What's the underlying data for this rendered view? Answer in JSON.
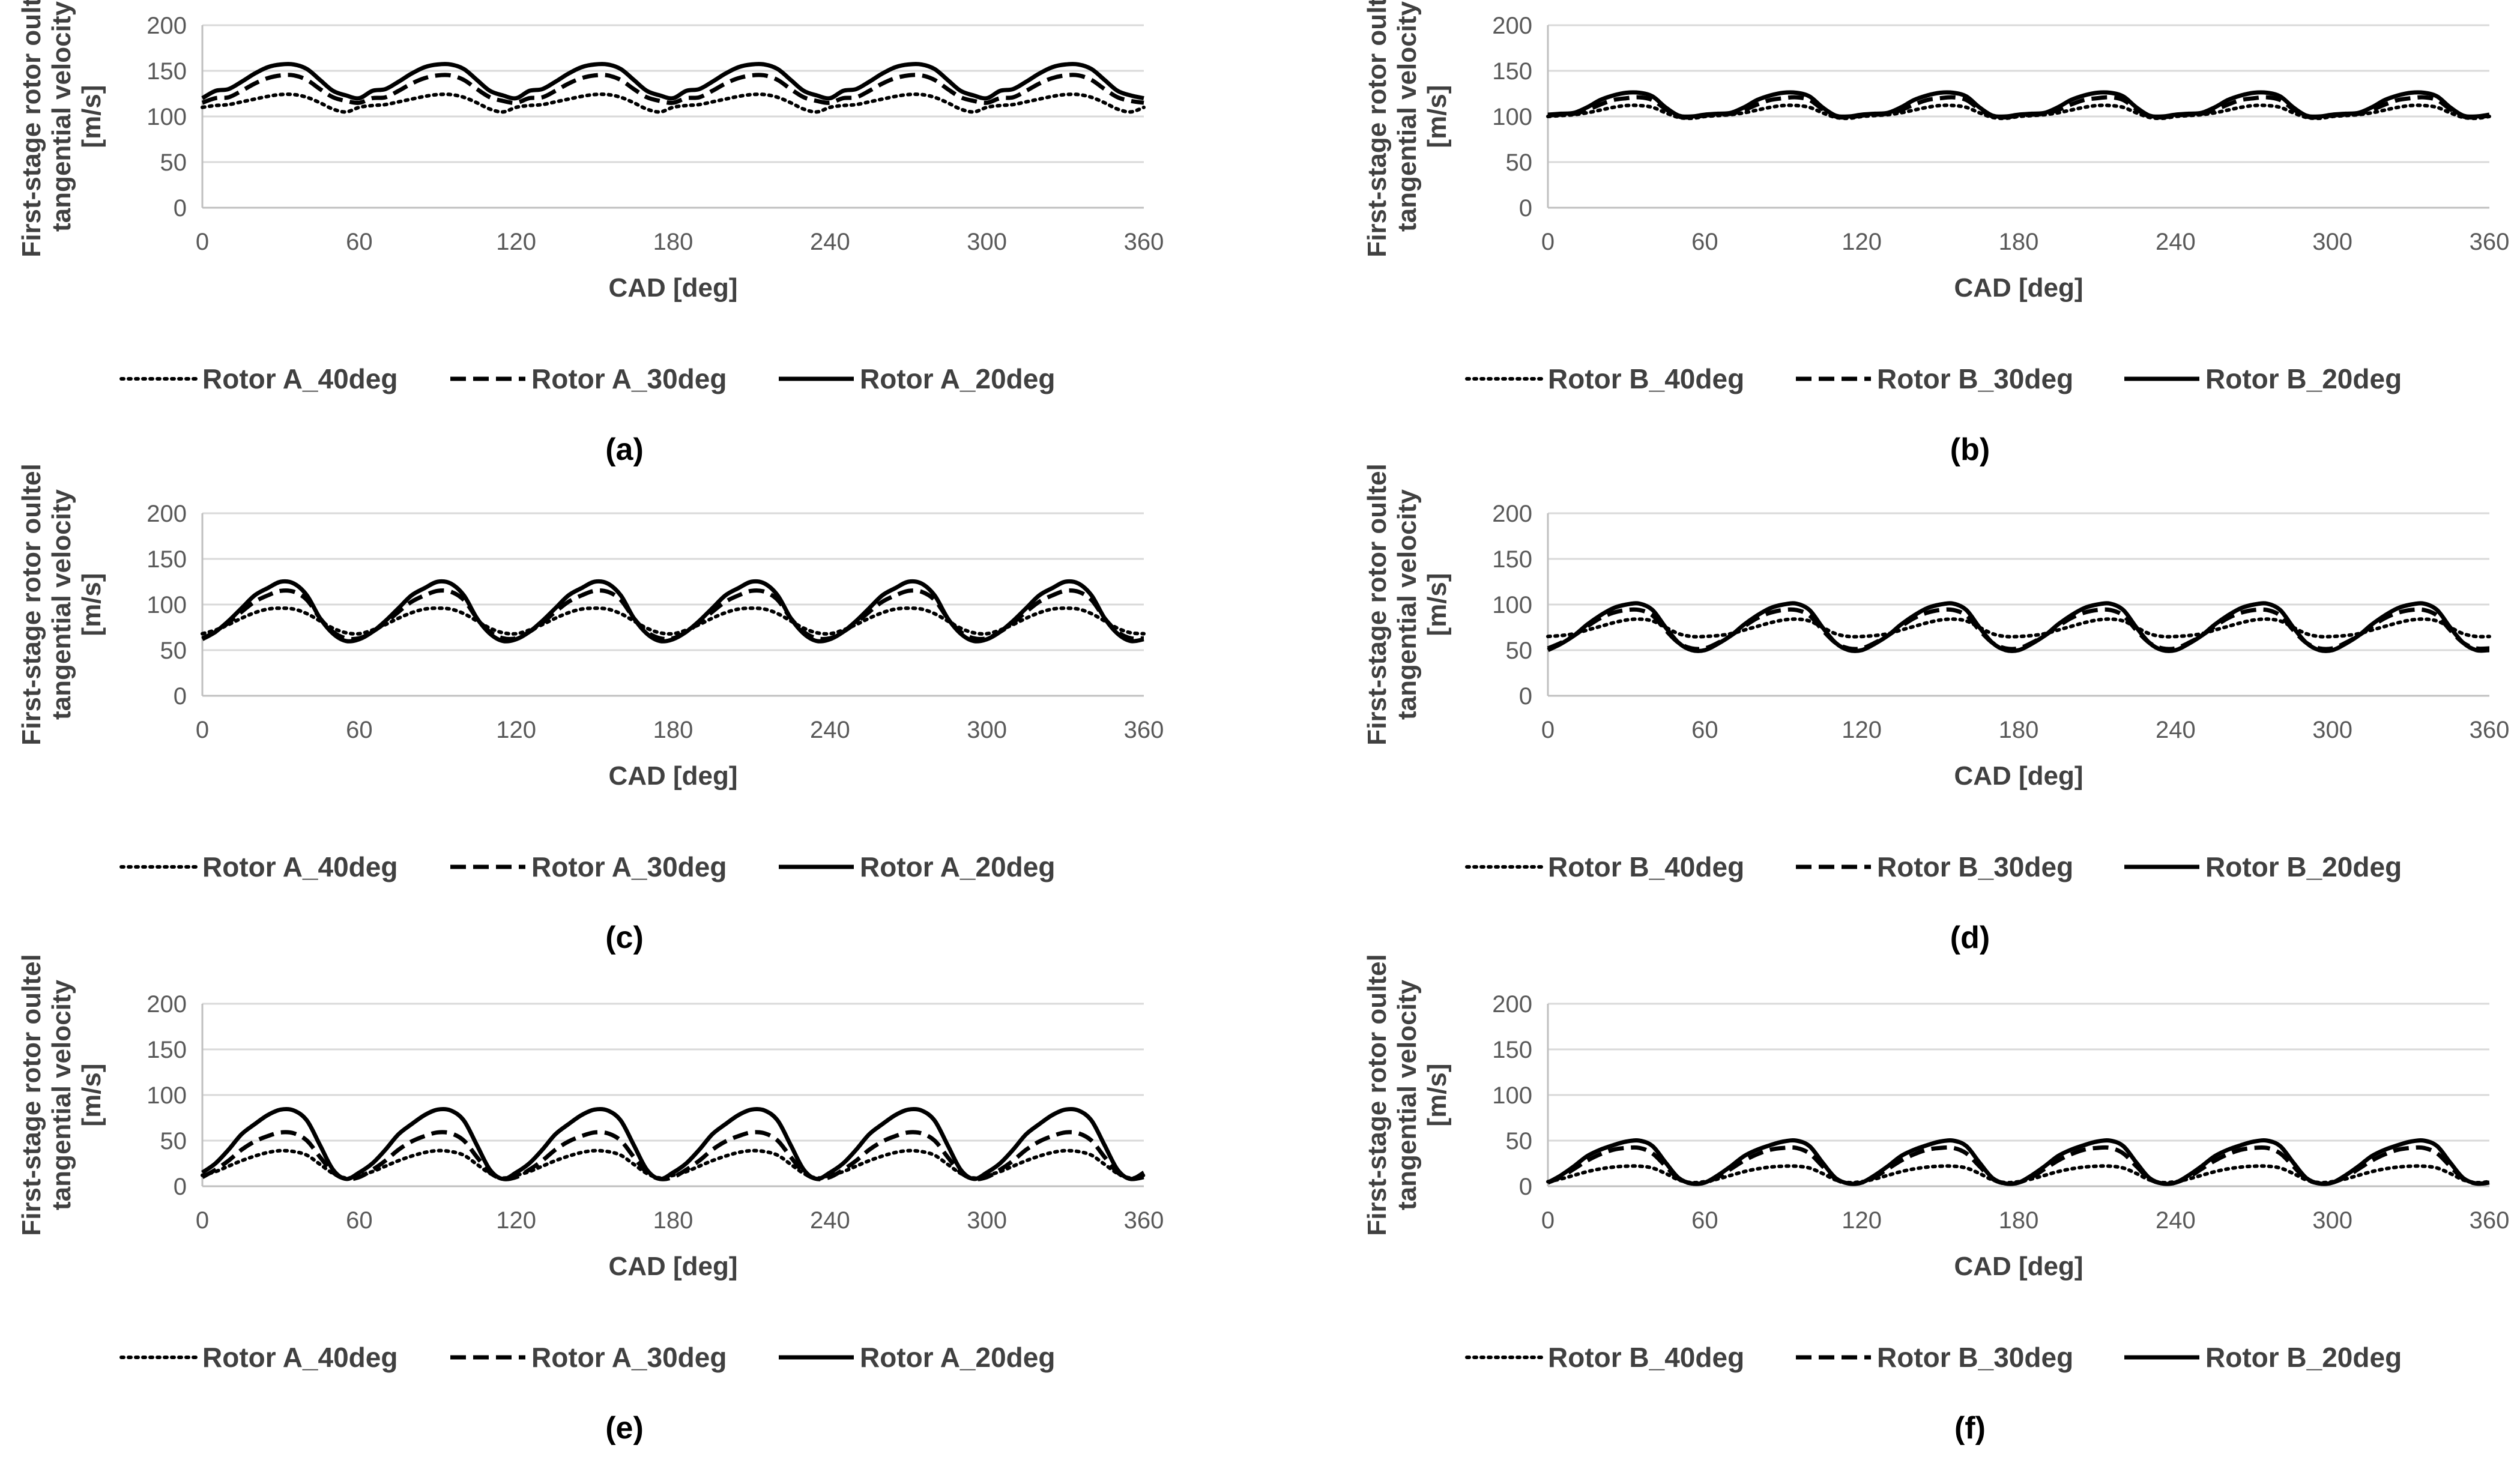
{
  "figure": {
    "colors": {
      "line": "#000000",
      "grid": "#d9d9d9",
      "axis": "#bfbfbf",
      "tick_text": "#595959",
      "title_text": "#404040"
    }
  },
  "chart_data": [
    {
      "type": "line",
      "caption": "(a)",
      "xlabel": "CAD [deg]",
      "ylabel": [
        "First-stage rotor oultel",
        "tangential velocity",
        "[m/s]"
      ],
      "xlim": [
        0,
        360
      ],
      "ylim": [
        0,
        200
      ],
      "xticks": [
        0,
        60,
        120,
        180,
        240,
        300,
        360
      ],
      "yticks": [
        0,
        50,
        100,
        150,
        200
      ],
      "grid": true,
      "legend": "bottom",
      "period": 60,
      "series": [
        {
          "name": "Rotor A_40deg",
          "style": "dotted",
          "x": [
            0,
            5,
            10,
            15,
            20,
            25,
            30,
            35,
            40,
            45,
            50,
            55,
            60
          ],
          "y": [
            110,
            112,
            113,
            116,
            119,
            122,
            124,
            124,
            121,
            115,
            108,
            105,
            110
          ]
        },
        {
          "name": "Rotor A_30deg",
          "style": "dashed",
          "x": [
            0,
            5,
            10,
            15,
            20,
            25,
            30,
            35,
            40,
            45,
            50,
            55,
            60
          ],
          "y": [
            115,
            120,
            121,
            128,
            136,
            142,
            145,
            145,
            140,
            130,
            121,
            117,
            115
          ]
        },
        {
          "name": "Rotor A_20deg",
          "style": "solid",
          "x": [
            0,
            5,
            10,
            15,
            20,
            25,
            30,
            35,
            40,
            45,
            50,
            55,
            60
          ],
          "y": [
            120,
            128,
            130,
            138,
            147,
            154,
            157,
            157,
            152,
            140,
            128,
            123,
            120
          ]
        }
      ]
    },
    {
      "type": "line",
      "caption": "(b)",
      "xlabel": "CAD [deg]",
      "ylabel": [
        "First-stage rotor oultel",
        "tangential velocity",
        "[m/s]"
      ],
      "xlim": [
        0,
        360
      ],
      "ylim": [
        0,
        200
      ],
      "xticks": [
        0,
        60,
        120,
        180,
        240,
        300,
        360
      ],
      "yticks": [
        0,
        50,
        100,
        150,
        200
      ],
      "grid": true,
      "legend": "bottom",
      "period": 60,
      "series": [
        {
          "name": "Rotor B_40deg",
          "style": "dotted",
          "x": [
            0,
            5,
            10,
            15,
            20,
            25,
            30,
            35,
            40,
            45,
            50,
            55,
            60
          ],
          "y": [
            100,
            101,
            102,
            104,
            107,
            110,
            112,
            112,
            110,
            104,
            99,
            98,
            100
          ]
        },
        {
          "name": "Rotor B_30deg",
          "style": "dashed",
          "x": [
            0,
            5,
            10,
            15,
            20,
            25,
            30,
            35,
            40,
            45,
            50,
            55,
            60
          ],
          "y": [
            101,
            102,
            103,
            107,
            113,
            118,
            120,
            121,
            118,
            108,
            100,
            99,
            101
          ]
        },
        {
          "name": "Rotor B_20deg",
          "style": "solid",
          "x": [
            0,
            5,
            10,
            15,
            20,
            25,
            30,
            35,
            40,
            45,
            50,
            55,
            60
          ],
          "y": [
            102,
            103,
            104,
            110,
            118,
            123,
            126,
            126,
            122,
            110,
            101,
            100,
            102
          ]
        }
      ]
    },
    {
      "type": "line",
      "caption": "(c)",
      "xlabel": "CAD [deg]",
      "ylabel": [
        "First-stage rotor oultel",
        "tangential velocity",
        "[m/s]"
      ],
      "xlim": [
        0,
        360
      ],
      "ylim": [
        0,
        200
      ],
      "xticks": [
        0,
        60,
        120,
        180,
        240,
        300,
        360
      ],
      "yticks": [
        0,
        50,
        100,
        150,
        200
      ],
      "grid": true,
      "legend": "bottom",
      "period": 60,
      "series": [
        {
          "name": "Rotor A_40deg",
          "style": "dotted",
          "x": [
            0,
            5,
            10,
            15,
            20,
            25,
            30,
            35,
            40,
            45,
            50,
            55,
            60
          ],
          "y": [
            68,
            72,
            78,
            85,
            91,
            95,
            96,
            95,
            90,
            82,
            74,
            69,
            68
          ]
        },
        {
          "name": "Rotor A_30deg",
          "style": "dashed",
          "x": [
            0,
            5,
            10,
            15,
            20,
            25,
            30,
            35,
            40,
            45,
            50,
            55,
            60
          ],
          "y": [
            63,
            70,
            80,
            92,
            103,
            110,
            115,
            114,
            105,
            85,
            70,
            63,
            63
          ]
        },
        {
          "name": "Rotor A_20deg",
          "style": "solid",
          "x": [
            0,
            5,
            10,
            15,
            20,
            25,
            30,
            35,
            40,
            45,
            50,
            55,
            60
          ],
          "y": [
            62,
            70,
            82,
            96,
            110,
            118,
            125,
            123,
            110,
            85,
            68,
            60,
            62
          ]
        }
      ]
    },
    {
      "type": "line",
      "caption": "(d)",
      "xlabel": "CAD [deg]",
      "ylabel": [
        "First-stage rotor oultel",
        "tangential velocity",
        "[m/s]"
      ],
      "xlim": [
        0,
        360
      ],
      "ylim": [
        0,
        200
      ],
      "xticks": [
        0,
        60,
        120,
        180,
        240,
        300,
        360
      ],
      "yticks": [
        0,
        50,
        100,
        150,
        200
      ],
      "grid": true,
      "legend": "bottom",
      "period": 60,
      "series": [
        {
          "name": "Rotor B_40deg",
          "style": "dotted",
          "x": [
            0,
            5,
            10,
            15,
            20,
            25,
            30,
            35,
            40,
            45,
            50,
            55,
            60
          ],
          "y": [
            65,
            66,
            68,
            72,
            76,
            80,
            83,
            84,
            82,
            75,
            68,
            65,
            65
          ]
        },
        {
          "name": "Rotor B_30deg",
          "style": "dashed",
          "x": [
            0,
            5,
            10,
            15,
            20,
            25,
            30,
            35,
            40,
            45,
            50,
            55,
            60
          ],
          "y": [
            52,
            58,
            66,
            76,
            85,
            91,
            94,
            94,
            88,
            72,
            58,
            52,
            52
          ]
        },
        {
          "name": "Rotor B_20deg",
          "style": "solid",
          "x": [
            0,
            5,
            10,
            15,
            20,
            25,
            30,
            35,
            40,
            45,
            50,
            55,
            60
          ],
          "y": [
            50,
            57,
            66,
            78,
            88,
            96,
            100,
            101,
            94,
            75,
            58,
            50,
            50
          ]
        }
      ]
    },
    {
      "type": "line",
      "caption": "(e)",
      "xlabel": "CAD [deg]",
      "ylabel": [
        "First-stage rotor oultel",
        "tangential velocity",
        "[m/s]"
      ],
      "xlim": [
        0,
        360
      ],
      "ylim": [
        0,
        200
      ],
      "xticks": [
        0,
        60,
        120,
        180,
        240,
        300,
        360
      ],
      "yticks": [
        0,
        50,
        100,
        150,
        200
      ],
      "grid": true,
      "legend": "bottom",
      "period": 60,
      "series": [
        {
          "name": "Rotor A_40deg",
          "style": "dotted",
          "x": [
            0,
            5,
            10,
            15,
            20,
            25,
            30,
            35,
            40,
            45,
            50,
            55,
            60
          ],
          "y": [
            12,
            16,
            22,
            28,
            33,
            37,
            39,
            38,
            34,
            24,
            14,
            9,
            12
          ]
        },
        {
          "name": "Rotor A_30deg",
          "style": "dashed",
          "x": [
            0,
            5,
            10,
            15,
            20,
            25,
            30,
            35,
            40,
            45,
            50,
            55,
            60
          ],
          "y": [
            10,
            18,
            28,
            40,
            49,
            55,
            59,
            58,
            50,
            32,
            15,
            8,
            10
          ]
        },
        {
          "name": "Rotor A_20deg",
          "style": "solid",
          "x": [
            0,
            5,
            10,
            15,
            20,
            25,
            30,
            35,
            40,
            45,
            50,
            55,
            60
          ],
          "y": [
            15,
            25,
            40,
            57,
            68,
            78,
            84,
            83,
            72,
            45,
            18,
            8,
            15
          ]
        }
      ]
    },
    {
      "type": "line",
      "caption": "(f)",
      "xlabel": "CAD [deg]",
      "ylabel": [
        "First-stage rotor oultel",
        "tangential velocity",
        "[m/s]"
      ],
      "xlim": [
        0,
        360
      ],
      "ylim": [
        0,
        200
      ],
      "xticks": [
        0,
        60,
        120,
        180,
        240,
        300,
        360
      ],
      "yticks": [
        0,
        50,
        100,
        150,
        200
      ],
      "grid": true,
      "legend": "bottom",
      "period": 60,
      "series": [
        {
          "name": "Rotor B_40deg",
          "style": "dotted",
          "x": [
            0,
            5,
            10,
            15,
            20,
            25,
            30,
            35,
            40,
            45,
            50,
            55,
            60
          ],
          "y": [
            5,
            8,
            12,
            16,
            19,
            21,
            22,
            22,
            20,
            14,
            7,
            4,
            5
          ]
        },
        {
          "name": "Rotor B_30deg",
          "style": "dashed",
          "x": [
            0,
            5,
            10,
            15,
            20,
            25,
            30,
            35,
            40,
            45,
            50,
            55,
            60
          ],
          "y": [
            4,
            10,
            19,
            28,
            35,
            40,
            42,
            42,
            36,
            22,
            8,
            3,
            4
          ]
        },
        {
          "name": "Rotor B_20deg",
          "style": "solid",
          "x": [
            0,
            5,
            10,
            15,
            20,
            25,
            30,
            35,
            40,
            45,
            50,
            55,
            60
          ],
          "y": [
            4,
            12,
            22,
            33,
            40,
            45,
            49,
            50,
            44,
            26,
            9,
            3,
            4
          ]
        }
      ]
    }
  ]
}
